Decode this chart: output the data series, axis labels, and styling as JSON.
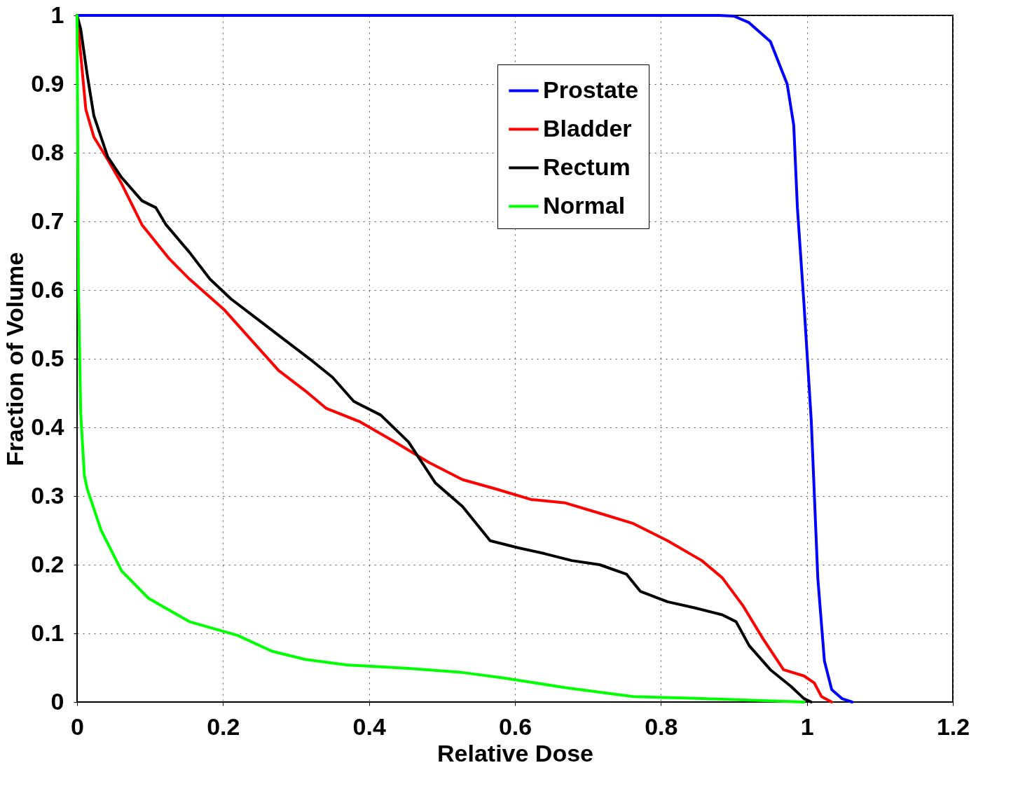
{
  "chart_data": {
    "type": "line",
    "xlabel": "Relative Dose",
    "ylabel": "Fraction of Volume",
    "xlim": [
      0,
      1.2
    ],
    "ylim": [
      0,
      1
    ],
    "xticks": [
      0,
      0.2,
      0.4,
      0.6,
      0.8,
      1,
      1.2
    ],
    "yticks": [
      0,
      0.1,
      0.2,
      0.3,
      0.4,
      0.5,
      0.6,
      0.7,
      0.8,
      0.9,
      1
    ],
    "grid": true,
    "legend": "top right",
    "marker": "none",
    "line_style": "solid",
    "series": [
      {
        "name": "Prostate",
        "color": "#0000ff",
        "x": [
          0,
          0.88,
          0.9,
          0.92,
          0.95,
          0.973,
          0.982,
          0.987,
          0.996,
          1.006,
          1.015,
          1.024,
          1.034,
          1.048,
          1.062
        ],
        "values": [
          1,
          1,
          0.999,
          0.99,
          0.962,
          0.9,
          0.84,
          0.72,
          0.58,
          0.41,
          0.18,
          0.06,
          0.018,
          0.005,
          0
        ]
      },
      {
        "name": "Bladder",
        "color": "#ff0000",
        "x": [
          0,
          0.012,
          0.023,
          0.042,
          0.061,
          0.089,
          0.126,
          0.154,
          0.201,
          0.239,
          0.276,
          0.313,
          0.341,
          0.388,
          0.435,
          0.482,
          0.528,
          0.575,
          0.622,
          0.669,
          0.716,
          0.762,
          0.809,
          0.856,
          0.884,
          0.912,
          0.94,
          0.968,
          0.996,
          1.01,
          1.02,
          1.034
        ],
        "values": [
          1,
          0.863,
          0.823,
          0.79,
          0.755,
          0.695,
          0.646,
          0.616,
          0.572,
          0.527,
          0.483,
          0.453,
          0.428,
          0.408,
          0.379,
          0.349,
          0.324,
          0.31,
          0.295,
          0.29,
          0.275,
          0.26,
          0.235,
          0.206,
          0.181,
          0.141,
          0.092,
          0.047,
          0.038,
          0.028,
          0.008,
          0
        ]
      },
      {
        "name": "Rectum",
        "color": "#000000",
        "x": [
          0,
          0.005,
          0.014,
          0.023,
          0.042,
          0.061,
          0.089,
          0.108,
          0.122,
          0.154,
          0.182,
          0.211,
          0.248,
          0.285,
          0.322,
          0.35,
          0.379,
          0.416,
          0.454,
          0.491,
          0.528,
          0.566,
          0.603,
          0.641,
          0.678,
          0.716,
          0.753,
          0.772,
          0.809,
          0.847,
          0.884,
          0.903,
          0.921,
          0.95,
          0.978,
          0.996,
          1.006
        ],
        "values": [
          1,
          0.98,
          0.913,
          0.854,
          0.794,
          0.764,
          0.73,
          0.72,
          0.695,
          0.655,
          0.616,
          0.587,
          0.557,
          0.527,
          0.497,
          0.473,
          0.438,
          0.418,
          0.379,
          0.319,
          0.285,
          0.235,
          0.225,
          0.216,
          0.206,
          0.2,
          0.186,
          0.161,
          0.146,
          0.137,
          0.127,
          0.117,
          0.082,
          0.047,
          0.023,
          0.005,
          0
        ]
      },
      {
        "name": "Normal",
        "color": "#00ff00",
        "x": [
          0,
          0.002,
          0.005,
          0.01,
          0.014,
          0.033,
          0.061,
          0.098,
          0.154,
          0.22,
          0.267,
          0.313,
          0.369,
          0.454,
          0.528,
          0.585,
          0.669,
          0.762,
          0.856,
          0.996
        ],
        "values": [
          1,
          0.6,
          0.42,
          0.33,
          0.31,
          0.25,
          0.191,
          0.151,
          0.117,
          0.097,
          0.074,
          0.062,
          0.054,
          0.049,
          0.043,
          0.035,
          0.021,
          0.008,
          0.005,
          0
        ]
      }
    ]
  }
}
